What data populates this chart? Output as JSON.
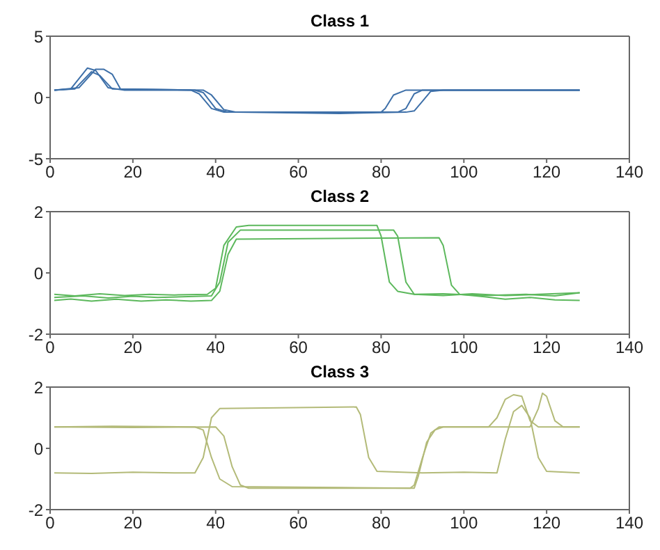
{
  "chart_data": [
    {
      "type": "line",
      "title": "Class 1",
      "xlim": [
        0,
        140
      ],
      "xticks": [
        0,
        20,
        40,
        60,
        80,
        100,
        120,
        140
      ],
      "ylim": [
        -5,
        5
      ],
      "yticks": [
        -5,
        0,
        5
      ],
      "series": [
        {
          "color": "#3d6fa8",
          "x": [
            1,
            5,
            9,
            11,
            14,
            18,
            34,
            36,
            39,
            42,
            60,
            80,
            81,
            83,
            86,
            100,
            128
          ],
          "values": [
            0.6,
            0.7,
            2.4,
            2.2,
            0.8,
            0.6,
            0.6,
            0.3,
            -0.9,
            -1.2,
            -1.2,
            -1.2,
            -0.9,
            0.2,
            0.6,
            0.6,
            0.6
          ]
        },
        {
          "color": "#3d6fa8",
          "x": [
            1,
            6,
            10,
            12,
            15,
            35,
            37,
            40,
            43,
            60,
            84,
            86,
            88,
            90,
            110,
            128
          ],
          "values": [
            0.6,
            0.7,
            2.1,
            1.8,
            0.7,
            0.6,
            0.4,
            -0.9,
            -1.2,
            -1.2,
            -1.2,
            -0.9,
            0.3,
            0.6,
            0.6,
            0.6
          ]
        },
        {
          "color": "#3d6fa8",
          "x": [
            1,
            7,
            11,
            13,
            15,
            17,
            37,
            39,
            42,
            45,
            70,
            86,
            88,
            90,
            92,
            95,
            128
          ],
          "values": [
            0.6,
            0.8,
            2.3,
            2.3,
            1.9,
            0.7,
            0.6,
            0.2,
            -1.0,
            -1.2,
            -1.3,
            -1.2,
            -1.1,
            -0.3,
            0.5,
            0.6,
            0.6
          ]
        }
      ]
    },
    {
      "type": "line",
      "title": "Class 2",
      "xlim": [
        0,
        140
      ],
      "xticks": [
        0,
        20,
        40,
        60,
        80,
        100,
        120,
        140
      ],
      "ylim": [
        -2,
        2
      ],
      "yticks": [
        -2,
        0,
        2
      ],
      "series": [
        {
          "color": "#5cb85c",
          "x": [
            1,
            6,
            12,
            18,
            24,
            30,
            38,
            40,
            42,
            45,
            48,
            79,
            80,
            82,
            84,
            88,
            95,
            105,
            115,
            122,
            128
          ],
          "values": [
            -0.7,
            -0.75,
            -0.68,
            -0.74,
            -0.7,
            -0.72,
            -0.7,
            -0.5,
            0.9,
            1.5,
            1.55,
            1.55,
            1.2,
            -0.3,
            -0.6,
            -0.7,
            -0.68,
            -0.74,
            -0.7,
            -0.75,
            -0.65
          ]
        },
        {
          "color": "#5cb85c",
          "x": [
            1,
            8,
            14,
            20,
            26,
            32,
            39,
            41,
            43,
            46,
            83,
            84,
            86,
            88,
            95,
            102,
            110,
            118,
            128
          ],
          "values": [
            -0.8,
            -0.75,
            -0.82,
            -0.76,
            -0.8,
            -0.78,
            -0.75,
            -0.3,
            1.0,
            1.4,
            1.4,
            1.2,
            -0.3,
            -0.7,
            -0.74,
            -0.68,
            -0.74,
            -0.7,
            -0.65
          ]
        },
        {
          "color": "#5cb85c",
          "x": [
            1,
            5,
            10,
            16,
            22,
            28,
            34,
            39,
            41,
            43,
            45,
            94,
            95,
            97,
            99,
            105,
            110,
            116,
            122,
            128
          ],
          "values": [
            -0.9,
            -0.85,
            -0.92,
            -0.86,
            -0.92,
            -0.88,
            -0.92,
            -0.9,
            -0.6,
            0.6,
            1.1,
            1.15,
            0.9,
            -0.4,
            -0.7,
            -0.78,
            -0.86,
            -0.8,
            -0.88,
            -0.9
          ]
        }
      ]
    },
    {
      "type": "line",
      "title": "Class 3",
      "xlim": [
        0,
        140
      ],
      "xticks": [
        0,
        20,
        40,
        60,
        80,
        100,
        120,
        140
      ],
      "ylim": [
        -2,
        2
      ],
      "yticks": [
        -2,
        0,
        2
      ],
      "series": [
        {
          "color": "#b3ba78",
          "x": [
            1,
            10,
            20,
            30,
            35,
            37,
            39,
            41,
            74,
            75,
            77,
            79,
            90,
            100,
            108,
            110,
            112,
            114,
            116,
            118,
            120,
            128
          ],
          "values": [
            -0.8,
            -0.82,
            -0.78,
            -0.8,
            -0.8,
            -0.3,
            1.0,
            1.3,
            1.35,
            1.1,
            -0.3,
            -0.75,
            -0.8,
            -0.78,
            -0.8,
            0.3,
            1.2,
            1.4,
            1.0,
            -0.3,
            -0.75,
            -0.8
          ]
        },
        {
          "color": "#b3ba78",
          "x": [
            1,
            15,
            35,
            37,
            39,
            41,
            44,
            70,
            88,
            89,
            91,
            93,
            95,
            106,
            108,
            110,
            112,
            114,
            116,
            118,
            128
          ],
          "values": [
            0.7,
            0.72,
            0.7,
            0.6,
            -0.3,
            -1.0,
            -1.25,
            -1.28,
            -1.3,
            -0.9,
            0.2,
            0.6,
            0.7,
            0.7,
            1.0,
            1.6,
            1.75,
            1.7,
            0.9,
            0.7,
            0.7
          ]
        },
        {
          "color": "#b3ba78",
          "x": [
            1,
            20,
            40,
            42,
            44,
            46,
            48,
            70,
            87,
            88,
            90,
            92,
            94,
            116,
            118,
            119,
            120,
            122,
            124,
            128
          ],
          "values": [
            0.7,
            0.68,
            0.7,
            0.4,
            -0.6,
            -1.2,
            -1.3,
            -1.3,
            -1.3,
            -1.2,
            -0.3,
            0.5,
            0.7,
            0.7,
            1.3,
            1.8,
            1.7,
            0.9,
            0.7,
            0.7
          ]
        }
      ]
    }
  ]
}
